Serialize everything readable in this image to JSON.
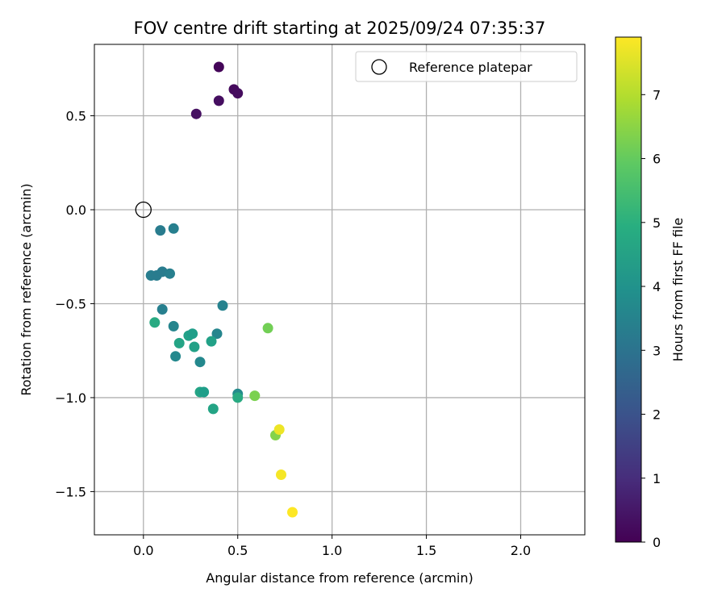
{
  "chart_data": {
    "type": "scatter",
    "title": "FOV centre drift starting at 2025/09/24 07:35:37",
    "xlabel": "Angular distance from reference (arcmin)",
    "ylabel": "Rotation from reference (arcmin)",
    "xlim": [
      -0.26,
      2.34
    ],
    "ylim": [
      -1.73,
      0.88
    ],
    "xticks": [
      0.0,
      0.5,
      1.0,
      1.5,
      2.0
    ],
    "xtick_labels": [
      "0.0",
      "0.5",
      "1.0",
      "1.5",
      "2.0"
    ],
    "yticks": [
      -1.5,
      -1.0,
      -0.5,
      0.0,
      0.5
    ],
    "ytick_labels": [
      "−1.5",
      "−1.0",
      "−0.5",
      "0.0",
      "0.5"
    ],
    "grid": true,
    "legend": {
      "location": "upper right",
      "entries": [
        "Reference platepar"
      ]
    },
    "colorbar": {
      "label": "Hours from first FF file",
      "colormap": "viridis",
      "range": [
        0,
        7.9
      ],
      "ticks": [
        0,
        1,
        2,
        3,
        4,
        5,
        6,
        7
      ],
      "tick_labels": [
        "0",
        "1",
        "2",
        "3",
        "4",
        "5",
        "6",
        "7"
      ]
    },
    "reference": {
      "x": 0.0,
      "y": 0.0,
      "label": "Reference platepar"
    },
    "points": [
      {
        "x": 0.4,
        "y": 0.76,
        "c": 0.1
      },
      {
        "x": 0.48,
        "y": 0.64,
        "c": 0.2
      },
      {
        "x": 0.5,
        "y": 0.62,
        "c": 0.25
      },
      {
        "x": 0.4,
        "y": 0.58,
        "c": 0.3
      },
      {
        "x": 0.28,
        "y": 0.51,
        "c": 0.35
      },
      {
        "x": 0.09,
        "y": -0.11,
        "c": 3.3
      },
      {
        "x": 0.16,
        "y": -0.1,
        "c": 3.4
      },
      {
        "x": 0.04,
        "y": -0.35,
        "c": 3.35
      },
      {
        "x": 0.07,
        "y": -0.35,
        "c": 3.3
      },
      {
        "x": 0.1,
        "y": -0.33,
        "c": 3.3
      },
      {
        "x": 0.14,
        "y": -0.34,
        "c": 3.4
      },
      {
        "x": 0.1,
        "y": -0.53,
        "c": 3.4
      },
      {
        "x": 0.42,
        "y": -0.51,
        "c": 3.5
      },
      {
        "x": 0.06,
        "y": -0.6,
        "c": 4.8
      },
      {
        "x": 0.16,
        "y": -0.62,
        "c": 3.6
      },
      {
        "x": 0.24,
        "y": -0.67,
        "c": 4.5
      },
      {
        "x": 0.26,
        "y": -0.66,
        "c": 4.4
      },
      {
        "x": 0.39,
        "y": -0.66,
        "c": 3.6
      },
      {
        "x": 0.19,
        "y": -0.71,
        "c": 4.6
      },
      {
        "x": 0.27,
        "y": -0.73,
        "c": 4.5
      },
      {
        "x": 0.36,
        "y": -0.7,
        "c": 4.5
      },
      {
        "x": 0.17,
        "y": -0.78,
        "c": 3.7
      },
      {
        "x": 0.3,
        "y": -0.81,
        "c": 3.7
      },
      {
        "x": 0.3,
        "y": -0.97,
        "c": 4.6
      },
      {
        "x": 0.32,
        "y": -0.97,
        "c": 4.4
      },
      {
        "x": 0.5,
        "y": -0.98,
        "c": 3.8
      },
      {
        "x": 0.5,
        "y": -1.0,
        "c": 4.8
      },
      {
        "x": 0.37,
        "y": -1.06,
        "c": 4.6
      },
      {
        "x": 0.66,
        "y": -0.63,
        "c": 6.2
      },
      {
        "x": 0.59,
        "y": -0.99,
        "c": 6.3
      },
      {
        "x": 0.7,
        "y": -1.2,
        "c": 6.4
      },
      {
        "x": 0.72,
        "y": -1.17,
        "c": 7.7
      },
      {
        "x": 0.73,
        "y": -1.41,
        "c": 7.8
      },
      {
        "x": 0.79,
        "y": -1.61,
        "c": 7.9
      }
    ]
  }
}
